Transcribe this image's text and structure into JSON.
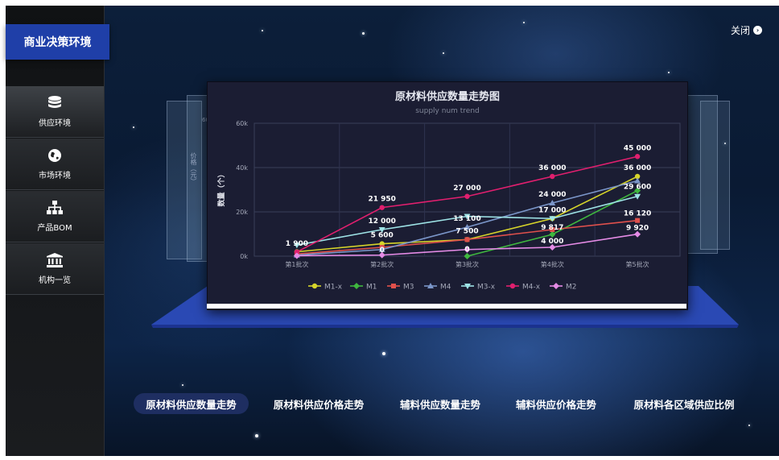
{
  "app": {
    "brand": "商业决策环境",
    "close_label": "关闭"
  },
  "sidebar": {
    "items": [
      {
        "label": "供应环境",
        "icon": "database-icon"
      },
      {
        "label": "市场环境",
        "icon": "globe-icon"
      },
      {
        "label": "产品BOM",
        "icon": "org-chart-icon"
      },
      {
        "label": "机构一览",
        "icon": "institution-icon"
      }
    ]
  },
  "tabs": [
    {
      "label": "原材料供应数量走势"
    },
    {
      "label": "原材料供应价格走势"
    },
    {
      "label": "辅料供应数量走势"
    },
    {
      "label": "辅料供应价格走势"
    },
    {
      "label": "原材料各区域供应比例"
    }
  ],
  "chart_data": {
    "type": "line",
    "title": "原材料供应数量走势图",
    "subtitle": "supply num trend",
    "ylabel": "数量（个）",
    "xlabel": "",
    "categories": [
      "第1批次",
      "第2批次",
      "第3批次",
      "第4批次",
      "第5批次"
    ],
    "ylim": [
      0,
      60000
    ],
    "yticks": [
      "0k",
      "20k",
      "40k",
      "60k"
    ],
    "grid": true,
    "legend_position": "bottom",
    "series": [
      {
        "name": "M1-x",
        "color": "#d6d42a",
        "marker": "circle",
        "values": [
          2000,
          5600,
          7500,
          17000,
          36000
        ]
      },
      {
        "name": "M1",
        "color": "#3fb73f",
        "marker": "diamond",
        "values": [
          null,
          null,
          0,
          9817,
          29600
        ]
      },
      {
        "name": "M3",
        "color": "#e0504c",
        "marker": "square",
        "values": [
          1000,
          4000,
          7500,
          12000,
          16120
        ]
      },
      {
        "name": "M4",
        "color": "#7b96c9",
        "marker": "triangle",
        "values": [
          500,
          3000,
          13100,
          24000,
          34000
        ]
      },
      {
        "name": "M3-x",
        "color": "#9ee3e6",
        "marker": "triangle-down",
        "values": [
          5000,
          12000,
          18000,
          17000,
          27000
        ]
      },
      {
        "name": "M4-x",
        "color": "#e01f6e",
        "marker": "circle",
        "values": [
          1900,
          21950,
          27000,
          36000,
          45000
        ]
      },
      {
        "name": "M2",
        "color": "#e58be6",
        "marker": "diamond",
        "values": [
          200,
          500,
          3000,
          4000,
          9920
        ]
      }
    ],
    "data_labels": [
      {
        "text": "1 900"
      },
      {
        "text": "21 950"
      },
      {
        "text": "12 000"
      },
      {
        "text": "5 600"
      },
      {
        "text": "0"
      },
      {
        "text": "27 000"
      },
      {
        "text": "13 100"
      },
      {
        "text": "7 500"
      },
      {
        "text": "0"
      },
      {
        "text": "36 000"
      },
      {
        "text": "24 000"
      },
      {
        "text": "17 000"
      },
      {
        "text": "9 817"
      },
      {
        "text": "4 000"
      },
      {
        "text": "45 000"
      },
      {
        "text": "36 000"
      },
      {
        "text": "29 600"
      },
      {
        "text": "16 120"
      },
      {
        "text": "9 920"
      }
    ]
  },
  "background_chart": {
    "ylabel": "价格（元）",
    "ytick": "60"
  },
  "colors": {
    "brand": "#1f3fa8",
    "active_tab": "#1e2e61",
    "panel": "#1b1d33"
  }
}
